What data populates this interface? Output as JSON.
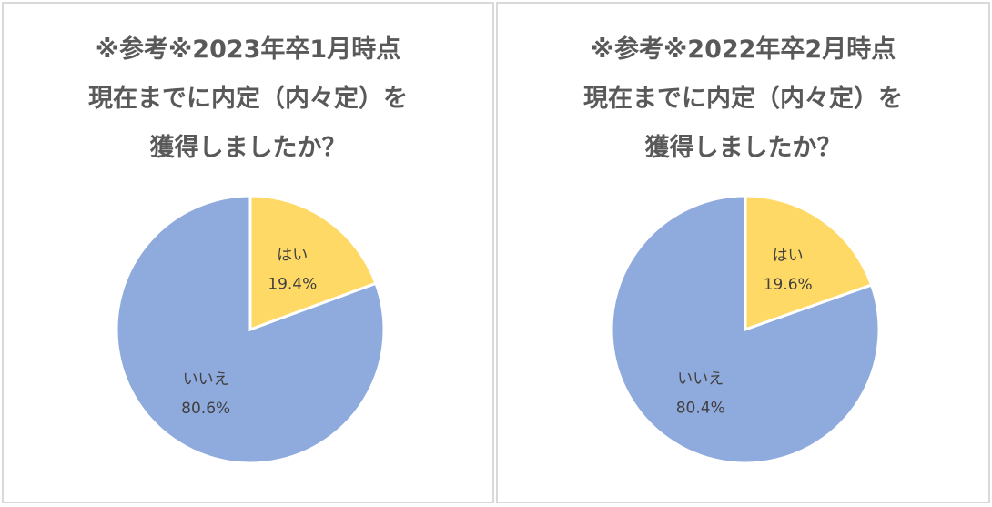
{
  "chart_data": [
    {
      "type": "pie",
      "title_lines": [
        "※参考※2023年卒1月時点",
        "現在までに内定（内々定）を",
        "獲得しましたか？"
      ],
      "slices": [
        {
          "label": "はい",
          "value": 19.4,
          "value_label": "19.4%",
          "color": "#ffd966"
        },
        {
          "label": "いいえ",
          "value": 80.6,
          "value_label": "80.6%",
          "color": "#8faadc"
        }
      ]
    },
    {
      "type": "pie",
      "title_lines": [
        "※参考※2022年卒2月時点",
        "現在までに内定（内々定）を",
        "獲得しましたか？"
      ],
      "slices": [
        {
          "label": "はい",
          "value": 19.6,
          "value_label": "19.6%",
          "color": "#ffd966"
        },
        {
          "label": "いいえ",
          "value": 80.4,
          "value_label": "80.4%",
          "color": "#8faadc"
        }
      ]
    }
  ]
}
